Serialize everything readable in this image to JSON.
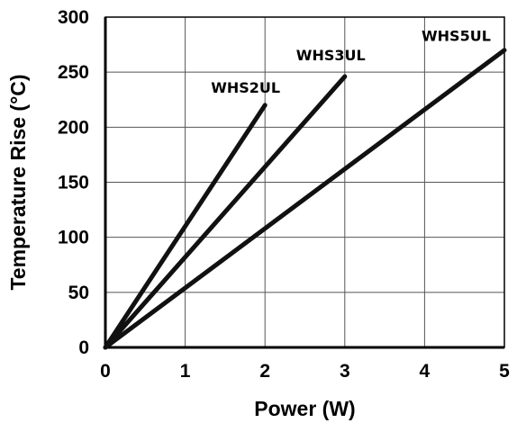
{
  "chart_data": {
    "type": "line",
    "title": "",
    "xlabel": "Power (W)",
    "ylabel": "Temperature Rise (°C)",
    "xlim": [
      0,
      5
    ],
    "ylim": [
      0,
      300
    ],
    "x_ticks": [
      "0",
      "1",
      "2",
      "3",
      "4",
      "5"
    ],
    "y_ticks": [
      "0",
      "50",
      "100",
      "150",
      "200",
      "250",
      "300"
    ],
    "grid": true,
    "legend": "none",
    "series": [
      {
        "name": "WHS2UL",
        "x": [
          0,
          2
        ],
        "y": [
          0,
          220
        ],
        "color": "#111111"
      },
      {
        "name": "WHS3UL",
        "x": [
          0,
          3
        ],
        "y": [
          0,
          246
        ],
        "color": "#111111"
      },
      {
        "name": "WHS5UL",
        "x": [
          0,
          5
        ],
        "y": [
          0,
          270
        ],
        "color": "#111111"
      }
    ]
  }
}
